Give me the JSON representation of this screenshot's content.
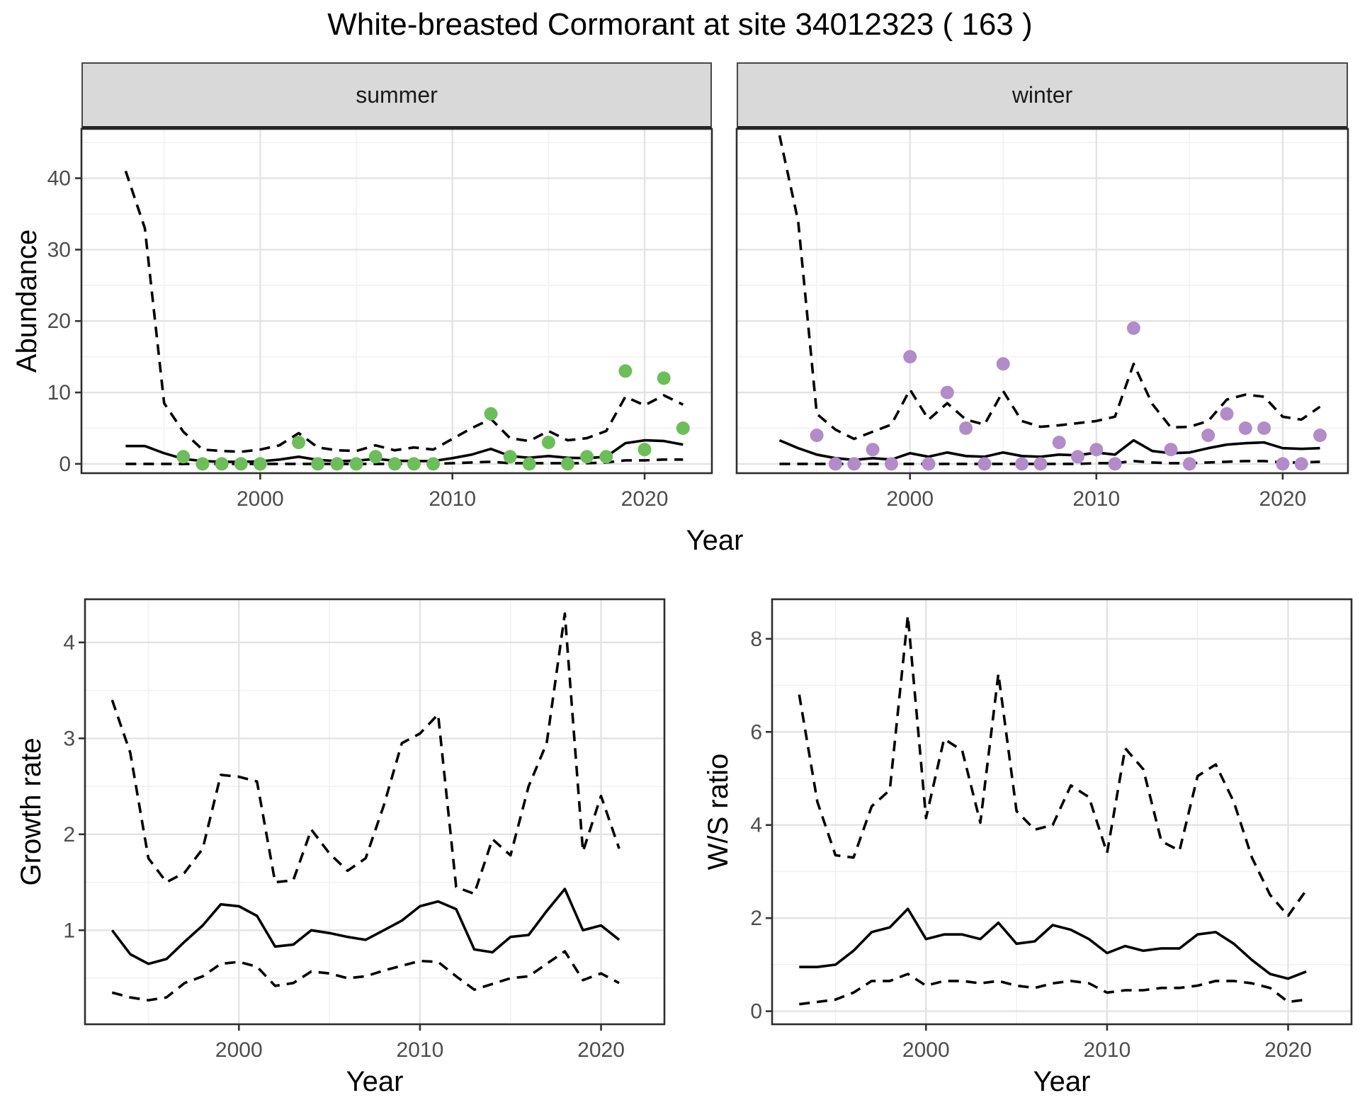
{
  "page": {
    "title": "White-breasted Cormorant at site 34012323 ( 163 )"
  },
  "colors": {
    "summer_point": "#6CBE5A",
    "winter_point": "#B28CC8",
    "line": "#000000",
    "grid_major": "#E3E3E3",
    "grid_minor": "#F1F1F1",
    "panel_border": "#2E2E2E",
    "tick_mark": "#333333",
    "tick_label": "#4D4D4D",
    "strip_bg": "#D9D9D9"
  },
  "axes": {
    "top": {
      "ylabel": "Abundance",
      "xlabel": "Year"
    },
    "growth": {
      "ylabel": "Growth rate",
      "xlabel": "Year"
    },
    "ws": {
      "ylabel": "W/S ratio",
      "xlabel": "Year"
    }
  },
  "facets": [
    {
      "label": "summer"
    },
    {
      "label": "winter"
    }
  ],
  "chart_data": [
    {
      "id": "summer",
      "type": "line",
      "title": "summer",
      "xlabel": "Year",
      "ylabel": "Abundance",
      "xlim": [
        1990.7,
        2023.5
      ],
      "ylim": [
        -1.3,
        46.9
      ],
      "x_ticks": [
        2000,
        2010,
        2020
      ],
      "y_ticks": [
        0,
        10,
        20,
        30,
        40
      ],
      "x": [
        1993,
        1994,
        1995,
        1996,
        1997,
        1998,
        1999,
        2000,
        2001,
        2002,
        2003,
        2004,
        2005,
        2006,
        2007,
        2008,
        2009,
        2010,
        2011,
        2012,
        2013,
        2014,
        2015,
        2016,
        2017,
        2018,
        2019,
        2020,
        2021,
        2022
      ],
      "series": [
        {
          "name": "upper_ci",
          "style": "dashed",
          "values": [
            41,
            33,
            8.5,
            4.5,
            2.0,
            1.8,
            1.7,
            2.0,
            2.6,
            4.3,
            2.3,
            1.9,
            1.8,
            2.6,
            1.9,
            2.3,
            2.0,
            3.5,
            5.0,
            6.3,
            3.6,
            3.2,
            4.6,
            3.3,
            3.6,
            4.6,
            9.4,
            8.2,
            9.6,
            8.3
          ]
        },
        {
          "name": "fit",
          "style": "solid",
          "values": [
            2.5,
            2.5,
            1.5,
            0.7,
            0.4,
            0.3,
            0.3,
            0.35,
            0.6,
            1.0,
            0.55,
            0.4,
            0.45,
            0.7,
            0.45,
            0.4,
            0.4,
            0.8,
            1.3,
            2.1,
            1.1,
            0.85,
            1.1,
            0.85,
            0.8,
            1.0,
            2.9,
            3.3,
            3.2,
            2.7
          ]
        },
        {
          "name": "lower_ci",
          "style": "dashed",
          "values": [
            0,
            0,
            0,
            0,
            0,
            0,
            0,
            0,
            0,
            0,
            0,
            0,
            0,
            0,
            0,
            0,
            0,
            0.1,
            0.2,
            0.3,
            0.1,
            0.1,
            0.1,
            0.1,
            0.1,
            0.2,
            0.5,
            0.5,
            0.6,
            0.6
          ]
        }
      ],
      "points": {
        "name": "observed-count",
        "color": "#6CBE5A",
        "x": [
          1996,
          1997,
          1998,
          1999,
          2000,
          2002,
          2003,
          2004,
          2005,
          2006,
          2007,
          2008,
          2009,
          2012,
          2013,
          2014,
          2015,
          2016,
          2017,
          2018,
          2019,
          2020,
          2021,
          2022
        ],
        "y": [
          1,
          0,
          0,
          0,
          0,
          3,
          0,
          0,
          0,
          1,
          0,
          0,
          0,
          7,
          1,
          0,
          3,
          0,
          1,
          1,
          13,
          2,
          12,
          5
        ]
      }
    },
    {
      "id": "winter",
      "type": "line",
      "title": "winter",
      "xlabel": "Year",
      "ylabel": "Abundance",
      "xlim": [
        1990.7,
        2023.5
      ],
      "ylim": [
        -1.3,
        46.9
      ],
      "x_ticks": [
        2000,
        2010,
        2020
      ],
      "y_ticks": [
        0,
        10,
        20,
        30,
        40
      ],
      "x": [
        1993,
        1994,
        1995,
        1996,
        1997,
        1998,
        1999,
        2000,
        2001,
        2002,
        2003,
        2004,
        2005,
        2006,
        2007,
        2008,
        2009,
        2010,
        2011,
        2012,
        2013,
        2014,
        2015,
        2016,
        2017,
        2018,
        2019,
        2020,
        2021,
        2022
      ],
      "series": [
        {
          "name": "upper_ci",
          "style": "dashed",
          "values": [
            46,
            34,
            7,
            4.8,
            3.5,
            4.5,
            5.5,
            10.4,
            6.2,
            8.5,
            6.2,
            5.5,
            10.2,
            6.0,
            5.2,
            5.4,
            5.7,
            6.0,
            6.6,
            14,
            8.4,
            5.1,
            5.2,
            6.0,
            9.0,
            9.7,
            9.4,
            6.6,
            6.2,
            8.0
          ]
        },
        {
          "name": "fit",
          "style": "solid",
          "values": [
            3.3,
            2.2,
            1.3,
            0.8,
            0.55,
            0.8,
            0.6,
            1.5,
            1.0,
            1.6,
            1.1,
            1.0,
            1.6,
            1.1,
            1.0,
            1.3,
            1.2,
            1.6,
            1.3,
            3.3,
            1.8,
            1.5,
            1.6,
            2.2,
            2.7,
            2.9,
            3.0,
            2.2,
            2.1,
            2.2
          ]
        },
        {
          "name": "lower_ci",
          "style": "dashed",
          "values": [
            0,
            0,
            0,
            0,
            0,
            0,
            0,
            0,
            0,
            0,
            0,
            0,
            0,
            0,
            0,
            0,
            0,
            0.1,
            0.1,
            0.4,
            0.2,
            0.1,
            0.1,
            0.2,
            0.3,
            0.4,
            0.4,
            0.2,
            0.2,
            0.3
          ]
        }
      ],
      "points": {
        "name": "observed-count",
        "color": "#B28CC8",
        "x": [
          1995,
          1996,
          1997,
          1998,
          1999,
          2000,
          2001,
          2002,
          2003,
          2004,
          2005,
          2006,
          2007,
          2008,
          2009,
          2010,
          2011,
          2012,
          2014,
          2015,
          2016,
          2017,
          2018,
          2019,
          2020,
          2021,
          2022
        ],
        "y": [
          4,
          0,
          0,
          2,
          0,
          15,
          0,
          10,
          5,
          0,
          14,
          0,
          0,
          3,
          1,
          2,
          0,
          19,
          2,
          0,
          4,
          7,
          5,
          5,
          0,
          0,
          4
        ]
      }
    },
    {
      "id": "growth",
      "type": "line",
      "title": "Growth rate",
      "xlabel": "Year",
      "ylabel": "Growth rate",
      "xlim": [
        1991.5,
        2023.5
      ],
      "ylim": [
        0.02,
        4.45
      ],
      "x_ticks": [
        2000,
        2010,
        2020
      ],
      "y_ticks": [
        1,
        2,
        3,
        4
      ],
      "x": [
        1993,
        1994,
        1995,
        1996,
        1997,
        1998,
        1999,
        2000,
        2001,
        2002,
        2003,
        2004,
        2005,
        2006,
        2007,
        2008,
        2009,
        2010,
        2011,
        2012,
        2013,
        2014,
        2015,
        2016,
        2017,
        2018,
        2019,
        2020,
        2021
      ],
      "series": [
        {
          "name": "upper_ci",
          "style": "dashed",
          "values": [
            3.4,
            2.85,
            1.75,
            1.5,
            1.6,
            1.85,
            2.62,
            2.6,
            2.55,
            1.5,
            1.52,
            2.05,
            1.8,
            1.62,
            1.75,
            2.3,
            2.95,
            3.05,
            3.25,
            1.45,
            1.38,
            1.95,
            1.78,
            2.5,
            2.95,
            4.3,
            1.82,
            2.4,
            1.85
          ]
        },
        {
          "name": "fit",
          "style": "solid",
          "values": [
            1.0,
            0.75,
            0.65,
            0.7,
            0.88,
            1.05,
            1.27,
            1.25,
            1.15,
            0.83,
            0.85,
            1.0,
            0.97,
            0.93,
            0.9,
            1.0,
            1.1,
            1.25,
            1.3,
            1.22,
            0.8,
            0.77,
            0.93,
            0.95,
            1.2,
            1.43,
            1.0,
            1.05,
            0.9
          ]
        },
        {
          "name": "lower_ci",
          "style": "dashed",
          "values": [
            0.35,
            0.3,
            0.27,
            0.3,
            0.45,
            0.52,
            0.65,
            0.67,
            0.62,
            0.42,
            0.45,
            0.57,
            0.55,
            0.5,
            0.52,
            0.58,
            0.63,
            0.68,
            0.67,
            0.52,
            0.38,
            0.44,
            0.5,
            0.52,
            0.65,
            0.78,
            0.48,
            0.55,
            0.45
          ]
        }
      ]
    },
    {
      "id": "ws",
      "type": "line",
      "title": "W/S ratio",
      "xlabel": "Year",
      "ylabel": "W/S ratio",
      "xlim": [
        1991.5,
        2023.5
      ],
      "ylim": [
        -0.28,
        8.85
      ],
      "x_ticks": [
        2000,
        2010,
        2020
      ],
      "y_ticks": [
        0,
        2,
        4,
        6,
        8
      ],
      "x": [
        1993,
        1994,
        1995,
        1996,
        1997,
        1998,
        1999,
        2000,
        2001,
        2002,
        2003,
        2004,
        2005,
        2006,
        2007,
        2008,
        2009,
        2010,
        2011,
        2012,
        2013,
        2014,
        2015,
        2016,
        2017,
        2018,
        2019,
        2020,
        2021
      ],
      "series": [
        {
          "name": "upper_ci",
          "style": "dashed",
          "values": [
            6.8,
            4.5,
            3.35,
            3.3,
            4.4,
            4.75,
            8.5,
            4.15,
            5.85,
            5.6,
            4.05,
            7.25,
            4.3,
            3.9,
            4.0,
            4.85,
            4.6,
            3.4,
            5.65,
            5.2,
            3.65,
            3.45,
            5.05,
            5.3,
            4.5,
            3.3,
            2.5,
            2.05,
            2.6
          ]
        },
        {
          "name": "fit",
          "style": "solid",
          "values": [
            0.95,
            0.95,
            1.0,
            1.3,
            1.7,
            1.8,
            2.2,
            1.55,
            1.65,
            1.65,
            1.55,
            1.9,
            1.45,
            1.5,
            1.85,
            1.75,
            1.55,
            1.25,
            1.4,
            1.3,
            1.35,
            1.35,
            1.65,
            1.7,
            1.45,
            1.1,
            0.8,
            0.7,
            0.85
          ]
        },
        {
          "name": "lower_ci",
          "style": "dashed",
          "values": [
            0.15,
            0.2,
            0.25,
            0.4,
            0.65,
            0.65,
            0.8,
            0.55,
            0.65,
            0.65,
            0.6,
            0.65,
            0.55,
            0.5,
            0.6,
            0.65,
            0.6,
            0.4,
            0.45,
            0.45,
            0.5,
            0.5,
            0.55,
            0.65,
            0.65,
            0.6,
            0.5,
            0.2,
            0.25
          ]
        }
      ]
    }
  ]
}
